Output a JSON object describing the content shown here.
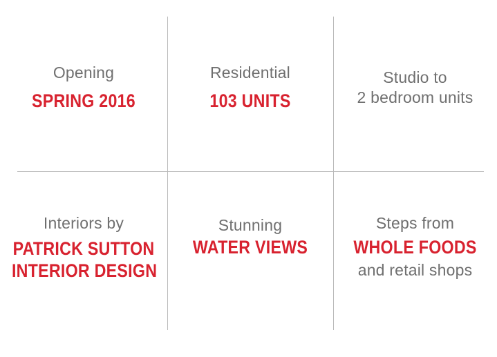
{
  "cells": [
    {
      "light": "Opening",
      "bold": "SPRING 2016"
    },
    {
      "light": "Residential",
      "bold": "103 UNITS"
    },
    {
      "light_1": "Studio to",
      "light_2": "2 bedroom units"
    },
    {
      "light": "Interiors by",
      "bold_1": "PATRICK SUTTON",
      "bold_2": "INTERIOR DESIGN"
    },
    {
      "light": "Stunning",
      "bold": "WATER VIEWS"
    },
    {
      "light_1": "Steps from",
      "bold": "WHOLE FOODS",
      "light_2": "and retail shops"
    }
  ],
  "colors": {
    "accent": "#d8222f",
    "text_light": "#6f6f6f",
    "divider": "#b9b9b9",
    "background": "#ffffff"
  }
}
